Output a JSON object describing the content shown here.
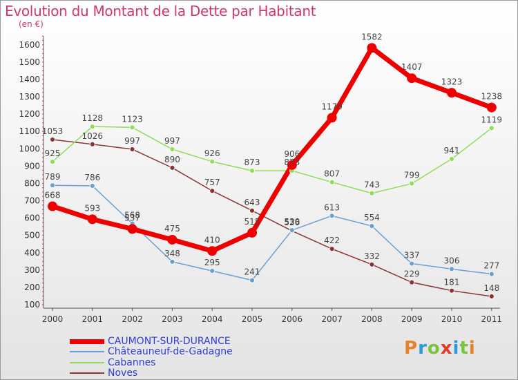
{
  "header": {
    "title": "Evolution du Montant de la Dette par Habitant",
    "subtitle": "(en €)"
  },
  "logo": {
    "text": "Proxiti",
    "colors": [
      "#e8822a",
      "#2f9ad8",
      "#7cc242",
      "#e03c2c",
      "#2f9ad8",
      "#7cc242",
      "#e8822a"
    ]
  },
  "chart_data": {
    "type": "line",
    "title": "Evolution du Montant de la Dette par Habitant",
    "subtitle": "(en €)",
    "xlabel": "",
    "ylabel": "",
    "x": [
      "2000",
      "2001",
      "2002",
      "2003",
      "2004",
      "2005",
      "2006",
      "2007",
      "2008",
      "2009",
      "2010",
      "2011"
    ],
    "yticks": [
      100,
      200,
      300,
      400,
      500,
      600,
      700,
      800,
      900,
      1000,
      1100,
      1200,
      1300,
      1400,
      1500,
      1600
    ],
    "ylim": [
      100,
      1650
    ],
    "grid": false,
    "legend_position": "bottom-left",
    "series": [
      {
        "name": "CAUMONT-SUR-DURANCE",
        "color": "#ee0000",
        "width": 7,
        "marker": 7,
        "values": [
          668,
          593,
          537,
          475,
          410,
          515,
          906,
          1179,
          1582,
          1407,
          1323,
          1238
        ]
      },
      {
        "name": "Châteauneuf-de-Gadagne",
        "color": "#6a9fcf",
        "width": 1.5,
        "marker": 3.5,
        "values": [
          789,
          786,
          568,
          348,
          295,
          241,
          530,
          613,
          554,
          337,
          306,
          277
        ]
      },
      {
        "name": "Cabannes",
        "color": "#8fdd59",
        "width": 1.5,
        "marker": 3.5,
        "values": [
          925,
          1128,
          1123,
          997,
          926,
          873,
          873,
          807,
          743,
          799,
          941,
          1119
        ]
      },
      {
        "name": "Noves",
        "color": "#8a3436",
        "width": 1.5,
        "marker": 3.5,
        "values": [
          1053,
          1026,
          997,
          890,
          757,
          643,
          526,
          422,
          332,
          229,
          181,
          148
        ]
      }
    ]
  }
}
